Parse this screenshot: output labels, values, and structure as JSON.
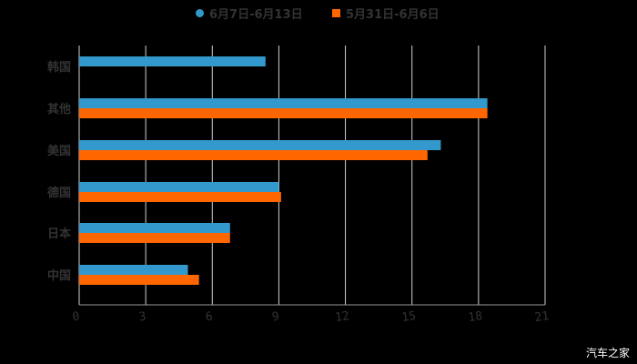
{
  "chart_data": {
    "type": "bar",
    "orientation": "horizontal",
    "title": "",
    "categories": [
      "韩国",
      "其他",
      "美国",
      "德国",
      "日本",
      "中国"
    ],
    "series": [
      {
        "name": "6月7日-6月13日",
        "color": "#3399cc",
        "values": [
          8.4,
          18.4,
          16.3,
          9.0,
          6.8,
          4.9
        ]
      },
      {
        "name": "5月31日-6月6日",
        "color": "#ff6600",
        "values": [
          0,
          18.4,
          15.7,
          9.1,
          6.8,
          5.4
        ]
      }
    ],
    "xlabel": "",
    "ylabel": "",
    "xlim": [
      0,
      21
    ],
    "xticks": [
      0,
      3,
      6,
      9,
      12,
      15,
      18,
      21
    ],
    "grid": true,
    "legend_position": "top"
  },
  "legend": {
    "items": [
      {
        "label": "6月7日-6月13日",
        "color": "#3399cc",
        "shape": "circle"
      },
      {
        "label": "5月31日-6月6日",
        "color": "#ff6600",
        "shape": "square"
      }
    ]
  },
  "watermark": "汽车之家"
}
